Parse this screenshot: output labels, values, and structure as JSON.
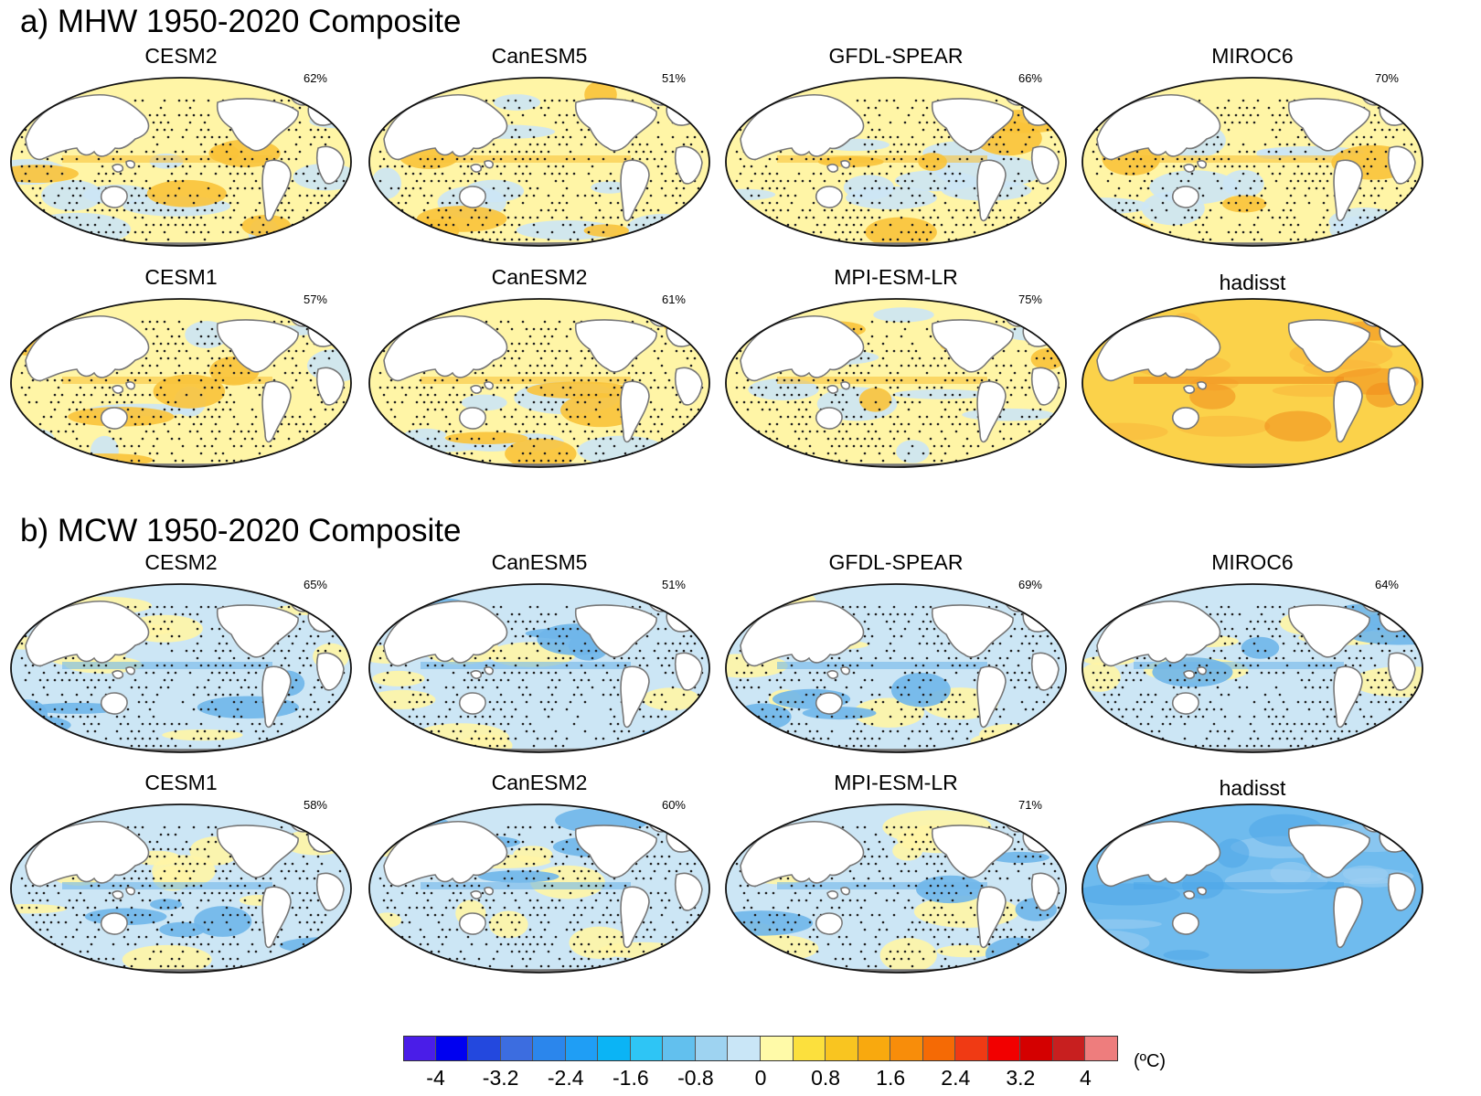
{
  "sections": [
    {
      "title": "a) MHW 1950-2020 Composite",
      "kind": "warm",
      "panels": [
        {
          "model": "CESM2",
          "pct": "62%"
        },
        {
          "model": "CanESM5",
          "pct": "51%"
        },
        {
          "model": "GFDL-SPEAR",
          "pct": "66%"
        },
        {
          "model": "MIROC6",
          "pct": "70%"
        },
        {
          "model": "CESM1",
          "pct": "57%"
        },
        {
          "model": "CanESM2",
          "pct": "61%"
        },
        {
          "model": "MPI-ESM-LR",
          "pct": "75%"
        },
        {
          "model": "hadisst",
          "pct": ""
        }
      ]
    },
    {
      "title": "b) MCW 1950-2020 Composite",
      "kind": "cold",
      "panels": [
        {
          "model": "CESM2",
          "pct": "65%"
        },
        {
          "model": "CanESM5",
          "pct": "51%"
        },
        {
          "model": "GFDL-SPEAR",
          "pct": "69%"
        },
        {
          "model": "MIROC6",
          "pct": "64%"
        },
        {
          "model": "CESM1",
          "pct": "58%"
        },
        {
          "model": "CanESM2",
          "pct": "60%"
        },
        {
          "model": "MPI-ESM-LR",
          "pct": "71%"
        },
        {
          "model": "hadisst",
          "pct": ""
        }
      ]
    }
  ],
  "colorbar": {
    "colors": [
      "#4a1de8",
      "#0000f0",
      "#2348de",
      "#3c6de0",
      "#2b86ec",
      "#1f9ef5",
      "#0bb4f5",
      "#2ec5f5",
      "#62c0ee",
      "#9ed3f1",
      "#c9e6f7",
      "#fffaa8",
      "#fce03d",
      "#f9c520",
      "#f9a90e",
      "#f88d0a",
      "#f56a05",
      "#f03a14",
      "#f20000",
      "#d40000",
      "#c81f1f",
      "#ee7d7d"
    ],
    "ticks": [
      "-4",
      "-3.2",
      "-2.4",
      "-1.6",
      "-0.8",
      "0",
      "0.8",
      "1.6",
      "2.4",
      "3.2",
      "4"
    ],
    "unit": "(ºC)"
  },
  "colors": {
    "warm_fill": "#fff5a6",
    "warm_strong": "#f9c33a",
    "cold_fill": "#cce6f5",
    "cold_strong": "#6fb6ea",
    "land": "#ffffff",
    "coast": "#777777",
    "stipple": "#222222"
  }
}
